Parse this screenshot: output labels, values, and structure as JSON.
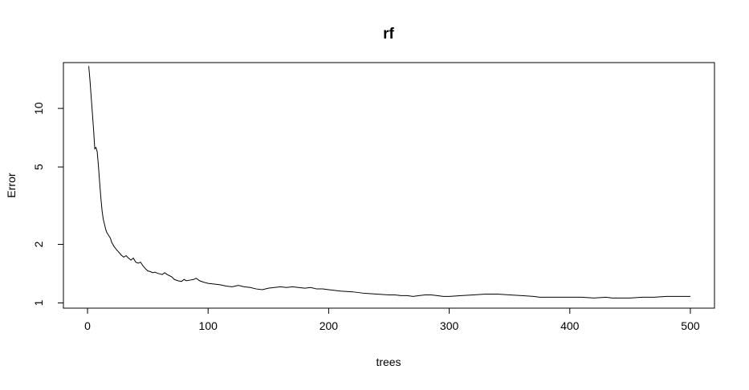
{
  "chart_data": {
    "type": "line",
    "title": "rf",
    "xlabel": "trees",
    "ylabel": "Error",
    "x_scale": "linear",
    "y_scale": "log",
    "xlim": [
      -20,
      520
    ],
    "ylim": [
      0.94,
      17.2
    ],
    "x_ticks": [
      0,
      100,
      200,
      300,
      400,
      500
    ],
    "y_ticks": [
      1,
      2,
      5,
      10
    ],
    "grid": false,
    "legend": "none",
    "line_color": "#000000",
    "series": [
      {
        "x": [
          1,
          2,
          3,
          4,
          5,
          6,
          7,
          8,
          9,
          10,
          11,
          12,
          13,
          14,
          15,
          16,
          17,
          18,
          19,
          20,
          22,
          24,
          26,
          28,
          30,
          32,
          34,
          36,
          38,
          40,
          42,
          44,
          46,
          48,
          50,
          52,
          54,
          56,
          58,
          60,
          62,
          64,
          66,
          68,
          70,
          72,
          75,
          78,
          80,
          82,
          85,
          88,
          90,
          93,
          96,
          100,
          105,
          110,
          115,
          120,
          125,
          130,
          135,
          140,
          145,
          150,
          155,
          160,
          165,
          170,
          175,
          180,
          185,
          190,
          195,
          200,
          210,
          220,
          230,
          240,
          250,
          255,
          260,
          265,
          270,
          275,
          280,
          285,
          290,
          295,
          300,
          310,
          320,
          330,
          340,
          350,
          360,
          370,
          375,
          380,
          385,
          390,
          400,
          410,
          420,
          430,
          435,
          440,
          450,
          460,
          470,
          480,
          490,
          500
        ],
        "y": [
          16.5,
          14.0,
          11.5,
          9.5,
          7.8,
          6.2,
          6.3,
          6.0,
          5.1,
          4.2,
          3.5,
          3.0,
          2.7,
          2.55,
          2.4,
          2.3,
          2.25,
          2.2,
          2.15,
          2.05,
          1.95,
          1.88,
          1.82,
          1.76,
          1.72,
          1.75,
          1.7,
          1.66,
          1.7,
          1.62,
          1.6,
          1.62,
          1.55,
          1.5,
          1.46,
          1.45,
          1.43,
          1.44,
          1.42,
          1.41,
          1.4,
          1.43,
          1.4,
          1.38,
          1.36,
          1.32,
          1.3,
          1.29,
          1.32,
          1.3,
          1.31,
          1.32,
          1.34,
          1.3,
          1.28,
          1.26,
          1.25,
          1.24,
          1.22,
          1.21,
          1.23,
          1.21,
          1.2,
          1.18,
          1.17,
          1.19,
          1.2,
          1.21,
          1.2,
          1.21,
          1.2,
          1.19,
          1.2,
          1.18,
          1.18,
          1.17,
          1.15,
          1.14,
          1.12,
          1.11,
          1.1,
          1.1,
          1.09,
          1.09,
          1.08,
          1.09,
          1.1,
          1.1,
          1.09,
          1.08,
          1.08,
          1.09,
          1.1,
          1.11,
          1.11,
          1.1,
          1.09,
          1.08,
          1.07,
          1.07,
          1.07,
          1.07,
          1.07,
          1.07,
          1.06,
          1.07,
          1.06,
          1.06,
          1.06,
          1.07,
          1.07,
          1.08,
          1.08,
          1.08
        ]
      }
    ]
  }
}
